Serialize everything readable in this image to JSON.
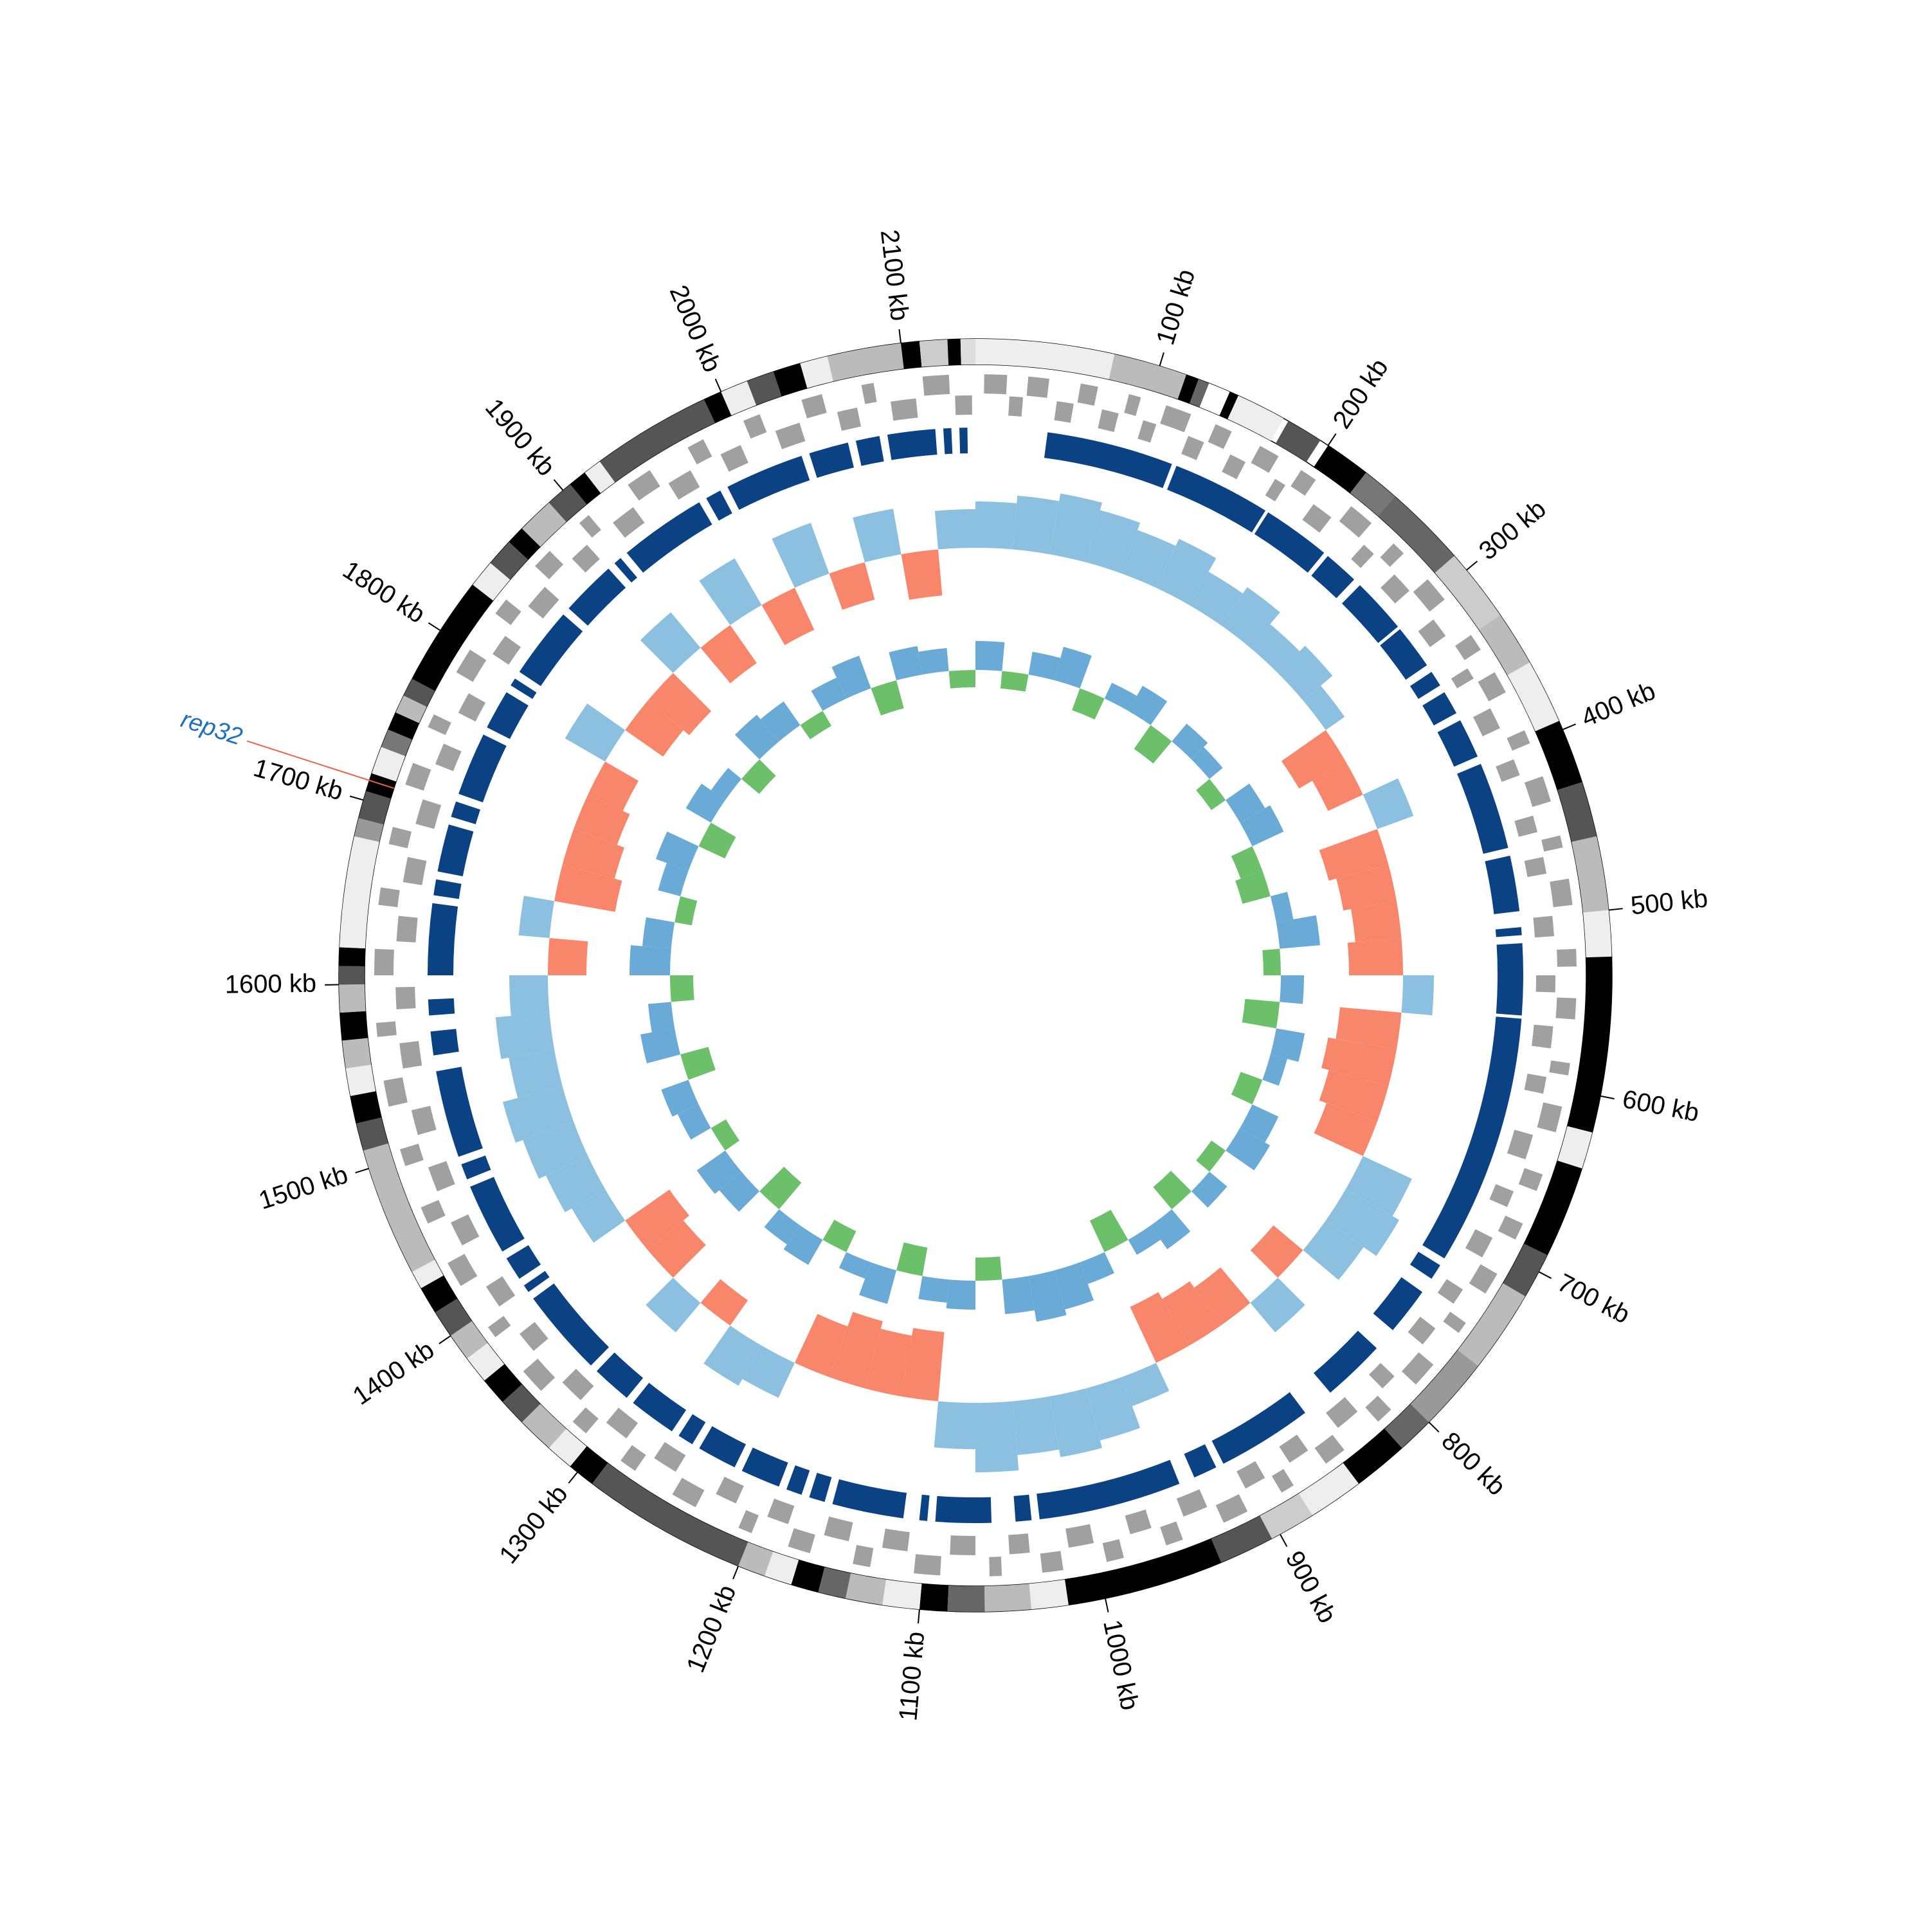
{
  "chart_data": {
    "type": "circos",
    "xlim": [
      0,
      2140
    ],
    "xticks": [
      {
        "value": 100,
        "label": "100 kb"
      },
      {
        "value": 200,
        "label": "200 kb"
      },
      {
        "value": 300,
        "label": "300 kb"
      },
      {
        "value": 400,
        "label": "400 kb"
      },
      {
        "value": 500,
        "label": "500 kb"
      },
      {
        "value": 600,
        "label": "600 kb"
      },
      {
        "value": 700,
        "label": "700 kb"
      },
      {
        "value": 800,
        "label": "800 kb"
      },
      {
        "value": 900,
        "label": "900 kb"
      },
      {
        "value": 1000,
        "label": "1000 kb"
      },
      {
        "value": 1100,
        "label": "1100 kb"
      },
      {
        "value": 1200,
        "label": "1200 kb"
      },
      {
        "value": 1300,
        "label": "1300 kb"
      },
      {
        "value": 1400,
        "label": "1400 kb"
      },
      {
        "value": 1500,
        "label": "1500 kb"
      },
      {
        "value": 1600,
        "label": "1600 kb"
      },
      {
        "value": 1700,
        "label": "1700 kb"
      },
      {
        "value": 1800,
        "label": "1800 kb"
      },
      {
        "value": 1900,
        "label": "1900 kb"
      },
      {
        "value": 2000,
        "label": "2000 kb"
      },
      {
        "value": 2100,
        "label": "2100 kb"
      }
    ],
    "bands": [
      [
        0,
        75,
        "#eeeeee"
      ],
      [
        75,
        115,
        "#bbbbbb"
      ],
      [
        115,
        122,
        "#000000"
      ],
      [
        122,
        128,
        "#666666"
      ],
      [
        128,
        140,
        "#ffffff"
      ],
      [
        140,
        145,
        "#000000"
      ],
      [
        145,
        172,
        "#eeeeee"
      ],
      [
        175,
        195,
        "#555555"
      ],
      [
        200,
        225,
        "#000000"
      ],
      [
        225,
        245,
        "#777777"
      ],
      [
        245,
        290,
        "#666666"
      ],
      [
        290,
        330,
        "#cccccc"
      ],
      [
        330,
        360,
        "#bbbbbb"
      ],
      [
        360,
        395,
        "#eeeeee"
      ],
      [
        395,
        430,
        "#000000"
      ],
      [
        430,
        460,
        "#555555"
      ],
      [
        460,
        500,
        "#bbbbbb"
      ],
      [
        500,
        525,
        "#eeeeee"
      ],
      [
        525,
        620,
        "#000000"
      ],
      [
        620,
        640,
        "#eeeeee"
      ],
      [
        640,
        690,
        "#000000"
      ],
      [
        690,
        715,
        "#555555"
      ],
      [
        715,
        760,
        "#bbbbbb"
      ],
      [
        760,
        800,
        "#999999"
      ],
      [
        800,
        820,
        "#666666"
      ],
      [
        820,
        850,
        "#000000"
      ],
      [
        850,
        880,
        "#eeeeee"
      ],
      [
        880,
        905,
        "#cccccc"
      ],
      [
        905,
        935,
        "#555555"
      ],
      [
        935,
        1020,
        "#000000"
      ],
      [
        1020,
        1040,
        "#eeeeee"
      ],
      [
        1040,
        1065,
        "#bbbbbb"
      ],
      [
        1065,
        1085,
        "#666666"
      ],
      [
        1085,
        1100,
        "#000000"
      ],
      [
        1100,
        1120,
        "#eeeeee"
      ],
      [
        1120,
        1140,
        "#bbbbbb"
      ],
      [
        1140,
        1155,
        "#666666"
      ],
      [
        1155,
        1170,
        "#000000"
      ],
      [
        1170,
        1185,
        "#eeeeee"
      ],
      [
        1185,
        1200,
        "#bbbbbb"
      ],
      [
        1200,
        1290,
        "#555555"
      ],
      [
        1290,
        1305,
        "#000000"
      ],
      [
        1305,
        1320,
        "#eeeeee"
      ],
      [
        1320,
        1340,
        "#bbbbbb"
      ],
      [
        1340,
        1355,
        "#555555"
      ],
      [
        1355,
        1370,
        "#000000"
      ],
      [
        1370,
        1385,
        "#eeeeee"
      ],
      [
        1385,
        1400,
        "#bbbbbb"
      ],
      [
        1400,
        1415,
        "#555555"
      ],
      [
        1415,
        1430,
        "#000000"
      ],
      [
        1430,
        1440,
        "#eeeeee"
      ],
      [
        1440,
        1510,
        "#bbbbbb"
      ],
      [
        1510,
        1525,
        "#555555"
      ],
      [
        1525,
        1540,
        "#000000"
      ],
      [
        1540,
        1555,
        "#eeeeee"
      ],
      [
        1555,
        1570,
        "#bbbbbb"
      ],
      [
        1570,
        1585,
        "#000000"
      ],
      [
        1585,
        1600,
        "#bbbbbb"
      ],
      [
        1600,
        1610,
        "#555555"
      ],
      [
        1610,
        1620,
        "#000000"
      ],
      [
        1620,
        1680,
        "#eeeeee"
      ],
      [
        1680,
        1690,
        "#999999"
      ],
      [
        1690,
        1705,
        "#555555"
      ],
      [
        1705,
        1715,
        "#000000"
      ],
      [
        1715,
        1730,
        "#eeeeee"
      ],
      [
        1730,
        1740,
        "#777777"
      ],
      [
        1740,
        1750,
        "#000000"
      ],
      [
        1750,
        1760,
        "#bbbbbb"
      ],
      [
        1760,
        1770,
        "#555555"
      ],
      [
        1770,
        1830,
        "#000000"
      ],
      [
        1830,
        1845,
        "#eeeeee"
      ],
      [
        1845,
        1860,
        "#555555"
      ],
      [
        1860,
        1870,
        "#000000"
      ],
      [
        1870,
        1890,
        "#bbbbbb"
      ],
      [
        1890,
        1905,
        "#555555"
      ],
      [
        1905,
        1915,
        "#000000"
      ],
      [
        1915,
        1925,
        "#eeeeee"
      ],
      [
        1925,
        1990,
        "#555555"
      ],
      [
        1990,
        2000,
        "#000000"
      ],
      [
        2000,
        2015,
        "#eeeeee"
      ],
      [
        2015,
        2030,
        "#555555"
      ],
      [
        2030,
        2045,
        "#000000"
      ],
      [
        2045,
        2060,
        "#eeeeee"
      ],
      [
        2060,
        2100,
        "#bbbbbb"
      ],
      [
        2100,
        2110,
        "#000000"
      ],
      [
        2110,
        2125,
        "#cccccc"
      ],
      [
        2125,
        2132,
        "#000000"
      ],
      [
        2132,
        2140,
        "#dddddd"
      ]
    ],
    "gene_color": "#a0a0a0",
    "genes_forward": [
      [
        5,
        18
      ],
      [
        30,
        42
      ],
      [
        60,
        70
      ],
      [
        88,
        95
      ],
      [
        110,
        125
      ],
      [
        140,
        150
      ],
      [
        168,
        180
      ],
      [
        195,
        205
      ],
      [
        230,
        245
      ],
      [
        262,
        270
      ],
      [
        290,
        305
      ],
      [
        330,
        340
      ],
      [
        355,
        368
      ],
      [
        392,
        400
      ],
      [
        420,
        435
      ],
      [
        455,
        462
      ],
      [
        480,
        495
      ],
      [
        520,
        530
      ],
      [
        548,
        560
      ],
      [
        585,
        592
      ],
      [
        610,
        625
      ],
      [
        650,
        660
      ],
      [
        680,
        690
      ],
      [
        712,
        725
      ],
      [
        745,
        752
      ],
      [
        775,
        790
      ],
      [
        810,
        820
      ],
      [
        845,
        858
      ],
      [
        880,
        888
      ],
      [
        910,
        925
      ],
      [
        950,
        960
      ],
      [
        985,
        995
      ],
      [
        1020,
        1032
      ],
      [
        1055,
        1062
      ],
      [
        1090,
        1105
      ],
      [
        1130,
        1140
      ],
      [
        1165,
        1178
      ],
      [
        1200,
        1208
      ],
      [
        1235,
        1250
      ],
      [
        1275,
        1285
      ],
      [
        1310,
        1320
      ],
      [
        1345,
        1360
      ],
      [
        1385,
        1392
      ],
      [
        1420,
        1435
      ],
      [
        1460,
        1470
      ],
      [
        1495,
        1505
      ],
      [
        1530,
        1545
      ],
      [
        1570,
        1578
      ],
      [
        1605,
        1620
      ],
      [
        1645,
        1655
      ],
      [
        1680,
        1690
      ],
      [
        1715,
        1728
      ],
      [
        1750,
        1758
      ],
      [
        1785,
        1800
      ],
      [
        1825,
        1835
      ],
      [
        1860,
        1872
      ],
      [
        1895,
        1902
      ],
      [
        1930,
        1945
      ],
      [
        1970,
        1980
      ],
      [
        2005,
        2015
      ],
      [
        2040,
        2052
      ],
      [
        2075,
        2082
      ],
      [
        2110,
        2125
      ]
    ],
    "genes_reverse": [
      [
        20,
        28
      ],
      [
        48,
        58
      ],
      [
        75,
        85
      ],
      [
        100,
        108
      ],
      [
        128,
        138
      ],
      [
        155,
        165
      ],
      [
        185,
        192
      ],
      [
        212,
        225
      ],
      [
        250,
        258
      ],
      [
        275,
        288
      ],
      [
        310,
        322
      ],
      [
        345,
        352
      ],
      [
        372,
        385
      ],
      [
        405,
        415
      ],
      [
        440,
        450
      ],
      [
        465,
        475
      ],
      [
        500,
        512
      ],
      [
        535,
        545
      ],
      [
        565,
        578
      ],
      [
        595,
        605
      ],
      [
        630,
        645
      ],
      [
        665,
        675
      ],
      [
        695,
        708
      ],
      [
        730,
        740
      ],
      [
        758,
        770
      ],
      [
        795,
        805
      ],
      [
        825,
        840
      ],
      [
        862,
        875
      ],
      [
        892,
        905
      ],
      [
        930,
        945
      ],
      [
        965,
        978
      ],
      [
        1000,
        1015
      ],
      [
        1038,
        1050
      ],
      [
        1070,
        1085
      ],
      [
        1110,
        1125
      ],
      [
        1145,
        1160
      ],
      [
        1182,
        1195
      ],
      [
        1215,
        1228
      ],
      [
        1255,
        1270
      ],
      [
        1290,
        1305
      ],
      [
        1325,
        1340
      ],
      [
        1365,
        1378
      ],
      [
        1398,
        1412
      ],
      [
        1440,
        1455
      ],
      [
        1475,
        1490
      ],
      [
        1510,
        1525
      ],
      [
        1550,
        1565
      ],
      [
        1585,
        1598
      ],
      [
        1625,
        1640
      ],
      [
        1660,
        1675
      ],
      [
        1695,
        1710
      ],
      [
        1732,
        1745
      ],
      [
        1765,
        1778
      ],
      [
        1805,
        1818
      ],
      [
        1840,
        1855
      ],
      [
        1878,
        1890
      ],
      [
        1910,
        1925
      ],
      [
        1950,
        1965
      ],
      [
        1985,
        1998
      ],
      [
        2020,
        2035
      ],
      [
        2058,
        2070
      ],
      [
        2090,
        2105
      ],
      [
        2128,
        2138
      ]
    ],
    "block_color": "#0b4283",
    "blocks": [
      [
        45,
        125
      ],
      [
        128,
        190
      ],
      [
        192,
        235
      ],
      [
        238,
        260
      ],
      [
        265,
        300
      ],
      [
        302,
        330
      ],
      [
        335,
        345
      ],
      [
        350,
        365
      ],
      [
        370,
        395
      ],
      [
        400,
        455
      ],
      [
        460,
        495
      ],
      [
        505,
        510
      ],
      [
        515,
        560
      ],
      [
        562,
        720
      ],
      [
        725,
        735
      ],
      [
        745,
        775
      ],
      [
        790,
        830
      ],
      [
        850,
        910
      ],
      [
        915,
        930
      ],
      [
        940,
        1030
      ],
      [
        1035,
        1045
      ],
      [
        1060,
        1095
      ],
      [
        1100,
        1105
      ],
      [
        1115,
        1160
      ],
      [
        1165,
        1175
      ],
      [
        1180,
        1190
      ],
      [
        1195,
        1220
      ],
      [
        1225,
        1250
      ],
      [
        1255,
        1265
      ],
      [
        1270,
        1300
      ],
      [
        1305,
        1330
      ],
      [
        1335,
        1390
      ],
      [
        1395,
        1400
      ],
      [
        1405,
        1420
      ],
      [
        1425,
        1470
      ],
      [
        1475,
        1485
      ],
      [
        1490,
        1545
      ],
      [
        1555,
        1570
      ],
      [
        1580,
        1590
      ],
      [
        1605,
        1650
      ],
      [
        1655,
        1665
      ],
      [
        1670,
        1700
      ],
      [
        1705,
        1715
      ],
      [
        1720,
        1760
      ],
      [
        1765,
        1790
      ],
      [
        1795,
        1800
      ],
      [
        1805,
        1850
      ],
      [
        1855,
        1890
      ],
      [
        1895,
        1900
      ],
      [
        1905,
        1960
      ],
      [
        1965,
        1975
      ],
      [
        1980,
        2030
      ],
      [
        2035,
        2060
      ],
      [
        2065,
        2080
      ],
      [
        2085,
        2115
      ],
      [
        2120,
        2125
      ],
      [
        2130,
        2135
      ]
    ],
    "skew_colors": [
      "#8cc0e0",
      "#f7866a"
    ],
    "skew": [
      0.6,
      0.7,
      0.8,
      0.7,
      0.6,
      0.7,
      0.5,
      0.6,
      0.4,
      0.5,
      0.3,
      -0.7,
      -0.5,
      0.5,
      -0.8,
      -0.7,
      -0.6,
      -0.7,
      0.4,
      -0.8,
      -0.9,
      -0.8,
      -0.7,
      0.7,
      0.8,
      0.6,
      -0.5,
      0.5,
      -0.6,
      -0.7,
      -0.8,
      0.4,
      0.7,
      0.8,
      0.7,
      0.9,
      0.6,
      -0.9,
      -0.8,
      -0.9,
      -0.7,
      0.5,
      0.6,
      -0.4,
      0.5,
      -0.6,
      -0.7,
      0.5,
      0.6,
      0.7,
      0.8,
      0.6,
      0.7,
      0.5,
      -0.5,
      0.4,
      -0.8,
      -0.7,
      -0.6,
      -0.5,
      0.6,
      -0.6,
      -0.7,
      0.6,
      -0.6,
      0.7,
      -0.6,
      0.7,
      -0.5,
      0.6,
      -0.6,
      0.5
    ],
    "gc_colors": [
      "#6aaad6",
      "#6cc06a"
    ],
    "gc": [
      0.5,
      -0.3,
      0.4,
      0.6,
      -0.4,
      0.3,
      0.5,
      -0.5,
      0.4,
      0.3,
      -0.3,
      0.5,
      0.6,
      -0.4,
      -0.5,
      0.3,
      0.7,
      -0.3,
      0.4,
      -0.6,
      0.5,
      0.3,
      -0.4,
      0.5,
      0.6,
      -0.3,
      0.4,
      -0.5,
      0.5,
      0.3,
      -0.6,
      0.4,
      0.7,
      0.8,
      0.6,
      -0.4,
      0.5,
      0.4,
      -0.5,
      0.6,
      0.3,
      -0.4,
      0.5,
      0.4,
      -0.6,
      0.5,
      0.6,
      -0.3,
      0.4,
      0.5,
      -0.5,
      0.6,
      0.4,
      -0.4,
      0.7,
      0.5,
      -0.3,
      0.4,
      0.6,
      -0.5,
      0.5,
      0.3,
      -0.4,
      0.6,
      0.5,
      -0.3,
      0.4,
      0.6,
      -0.5,
      0.5,
      0.4,
      -0.3
    ],
    "annotations": [
      {
        "label": "rep32",
        "position": 1711,
        "color": "#1f6fbf",
        "line_color": "#f06040"
      }
    ]
  }
}
